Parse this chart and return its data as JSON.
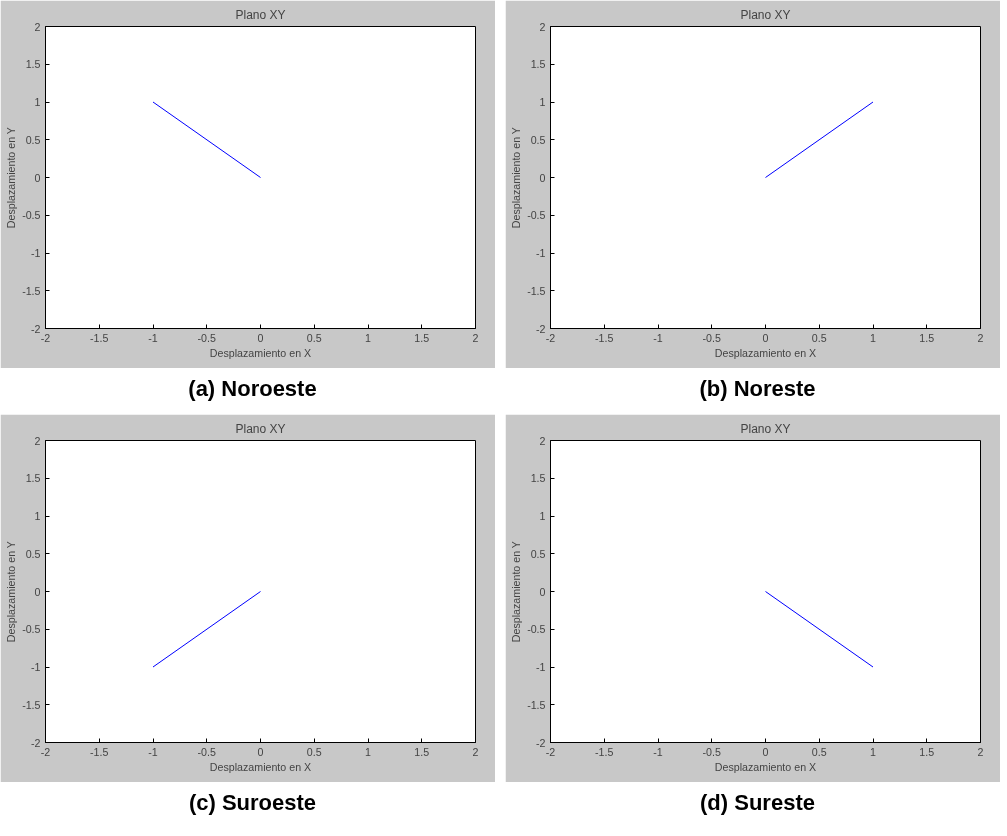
{
  "chart_data": [
    {
      "type": "line",
      "title": "Plano XY",
      "xlabel": "Desplazamiento en X",
      "ylabel": "Desplazamiento en Y",
      "annotations": [
        "(a) Noroeste"
      ],
      "x": [
        -1,
        0
      ],
      "series": [
        {
          "color": "#0000ff",
          "values": [
            1,
            0
          ]
        }
      ],
      "xlim": [
        -2,
        2
      ],
      "ylim": [
        -2,
        2
      ],
      "xticks": [
        -2,
        -1.5,
        -1,
        -0.5,
        0,
        0.5,
        1,
        1.5,
        2
      ],
      "yticks": [
        -2,
        -1.5,
        -1,
        -0.5,
        0,
        0.5,
        1,
        1.5,
        2
      ],
      "grid": false
    },
    {
      "type": "line",
      "title": "Plano XY",
      "xlabel": "Desplazamiento en X",
      "ylabel": "Desplazamiento en Y",
      "annotations": [
        "(b) Noreste"
      ],
      "x": [
        0,
        1
      ],
      "series": [
        {
          "color": "#0000ff",
          "values": [
            0,
            1
          ]
        }
      ],
      "xlim": [
        -2,
        2
      ],
      "ylim": [
        -2,
        2
      ],
      "xticks": [
        -2,
        -1.5,
        -1,
        -0.5,
        0,
        0.5,
        1,
        1.5,
        2
      ],
      "yticks": [
        -2,
        -1.5,
        -1,
        -0.5,
        0,
        0.5,
        1,
        1.5,
        2
      ],
      "grid": false
    },
    {
      "type": "line",
      "title": "Plano XY",
      "xlabel": "Desplazamiento en X",
      "ylabel": "Desplazamiento en Y",
      "annotations": [
        "(c) Suroeste"
      ],
      "x": [
        -1,
        0
      ],
      "series": [
        {
          "color": "#0000ff",
          "values": [
            -1,
            0
          ]
        }
      ],
      "xlim": [
        -2,
        2
      ],
      "ylim": [
        -2,
        2
      ],
      "xticks": [
        -2,
        -1.5,
        -1,
        -0.5,
        0,
        0.5,
        1,
        1.5,
        2
      ],
      "yticks": [
        -2,
        -1.5,
        -1,
        -0.5,
        0,
        0.5,
        1,
        1.5,
        2
      ],
      "grid": false
    },
    {
      "type": "line",
      "title": "Plano XY",
      "xlabel": "Desplazamiento en X",
      "ylabel": "Desplazamiento en Y",
      "annotations": [
        "(d) Sureste"
      ],
      "x": [
        0,
        1
      ],
      "series": [
        {
          "color": "#0000ff",
          "values": [
            0,
            -1
          ]
        }
      ],
      "xlim": [
        -2,
        2
      ],
      "ylim": [
        -2,
        2
      ],
      "xticks": [
        -2,
        -1.5,
        -1,
        -0.5,
        0,
        0.5,
        1,
        1.5,
        2
      ],
      "yticks": [
        -2,
        -1.5,
        -1,
        -0.5,
        0,
        0.5,
        1,
        1.5,
        2
      ],
      "grid": false
    }
  ]
}
